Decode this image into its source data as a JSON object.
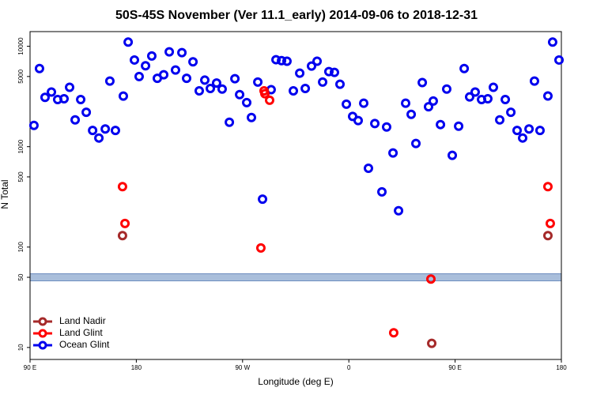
{
  "chart_data": {
    "type": "scatter",
    "title": "50S-45S November (Ver 11.1_early)   2014-09-06 to 2018-12-31",
    "x_label": "Longitude (deg E)",
    "y_label": "N Total",
    "log_y": true,
    "legend": "bottom-left",
    "xlim": [
      90,
      540
    ],
    "xticks": [
      {
        "value": 90,
        "label": "90 E"
      },
      180,
      {
        "value": 270,
        "label": "90 W"
      },
      {
        "value": 360,
        "label": "0"
      },
      {
        "value": 450,
        "label": "90 E"
      },
      {
        "value": 540,
        "label": "180"
      }
    ],
    "ylim": [
      7.6,
      14000
    ],
    "yticks": [
      10,
      50,
      100,
      500,
      1000,
      5000,
      10000
    ],
    "series": [
      {
        "name": "Land Nadir",
        "color": "#a52a2a",
        "x": [
          168.3,
          430.2,
          528.6
        ],
        "values": [
          130,
          11,
          130
        ]
      },
      {
        "name": "Land Glint",
        "color": "#ff0000",
        "x": [
          168.3,
          170.4,
          285.5,
          288.2,
          288.9,
          292.9,
          429.5,
          398.0,
          528.6,
          530.6
        ],
        "values": [
          400,
          172,
          98,
          3600,
          3370,
          2900,
          48,
          14,
          400,
          172
        ]
      },
      {
        "name": "Ocean Glint",
        "color": "#0000ee",
        "x": [
          93.3,
          98.0,
          102.7,
          108.1,
          113.4,
          118.8,
          123.5,
          128.2,
          132.9,
          137.6,
          143.0,
          148.3,
          153.7,
          157.6,
          162.3,
          169.0,
          173.1,
          178.4,
          182.4,
          187.8,
          193.1,
          197.8,
          203.2,
          207.9,
          213.2,
          218.6,
          222.6,
          228.0,
          233.3,
          238.0,
          242.7,
          248.0,
          252.7,
          258.8,
          263.5,
          267.5,
          273.5,
          277.5,
          282.9,
          286.9,
          294.2,
          298.3,
          303.0,
          307.6,
          313.0,
          318.4,
          323.1,
          328.4,
          333.1,
          337.8,
          343.1,
          347.8,
          352.5,
          357.9,
          363.2,
          367.9,
          372.6,
          376.6,
          382.0,
          388.0,
          392.0,
          397.4,
          402.1,
          408.1,
          412.8,
          416.8,
          422.2,
          427.5,
          431.5,
          437.6,
          442.9,
          447.6,
          453.0,
          457.7,
          462.3,
          467.0,
          472.4,
          477.7,
          482.4,
          487.8,
          492.5,
          497.2,
          502.5,
          507.2,
          512.6,
          517.2,
          521.9,
          528.6,
          532.6,
          538.0
        ],
        "values": [
          1630,
          6000,
          3100,
          3500,
          2950,
          3000,
          3900,
          1850,
          2950,
          2200,
          1450,
          1220,
          1500,
          4500,
          1450,
          3190,
          11000,
          7300,
          5000,
          6400,
          8000,
          4800,
          5200,
          8800,
          5800,
          8650,
          4800,
          7000,
          3600,
          4600,
          3800,
          4300,
          3750,
          1750,
          4750,
          3300,
          2750,
          1950,
          4400,
          300,
          3700,
          7350,
          7200,
          7100,
          3600,
          5400,
          3800,
          6350,
          7100,
          4400,
          5600,
          5500,
          4190,
          2650,
          2000,
          1820,
          2710,
          610,
          1700,
          355,
          1570,
          865,
          230,
          2710,
          2100,
          1075,
          4350,
          2500,
          2850,
          1660,
          3750,
          820,
          1600,
          6000,
          3130,
          3500,
          2950,
          3000,
          3900,
          1850,
          2950,
          2200,
          1450,
          1220,
          1500,
          4500,
          1450,
          3200,
          11000,
          7300
        ]
      }
    ]
  }
}
